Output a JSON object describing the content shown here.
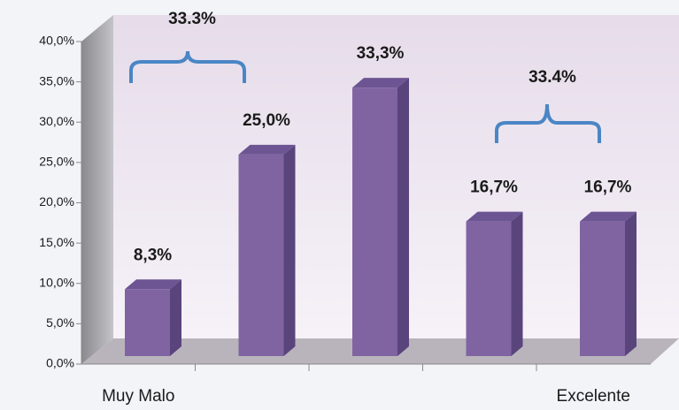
{
  "chart_data": {
    "type": "bar",
    "categories": [
      "Muy Malo",
      null,
      null,
      null,
      "Excelente"
    ],
    "values": [
      8.3,
      25.0,
      33.3,
      16.7,
      16.7
    ],
    "value_labels": [
      "8,3%",
      "25,0%",
      "33,3%",
      "16,7%",
      "16,7%"
    ],
    "color": "#8064a2",
    "ylim": [
      0,
      40
    ],
    "yticks": [
      {
        "value": 0,
        "label": "0,0%"
      },
      {
        "value": 5,
        "label": "5,0%"
      },
      {
        "value": 10,
        "label": "10,0%"
      },
      {
        "value": 15,
        "label": "15,0%"
      },
      {
        "value": 20,
        "label": "20,0%"
      },
      {
        "value": 25,
        "label": "25,0%"
      },
      {
        "value": 30,
        "label": "30,0%"
      },
      {
        "value": 35,
        "label": "35,0%"
      },
      {
        "value": 40,
        "label": "40,0%"
      }
    ],
    "annotations": [
      "33.3%",
      "33.4%"
    ]
  }
}
